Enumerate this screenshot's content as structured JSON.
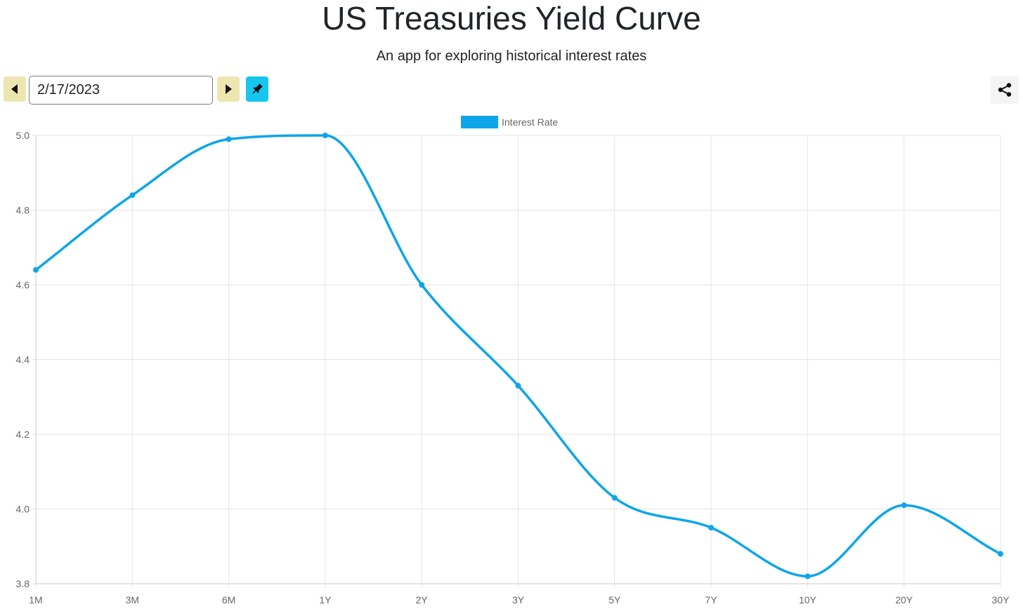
{
  "header": {
    "title": "US Treasuries Yield Curve",
    "subtitle": "An app for exploring historical interest rates"
  },
  "controls": {
    "date_value": "2/17/2023",
    "prev_icon": "triangle-left-icon",
    "next_icon": "triangle-right-icon",
    "pin_icon": "pushpin-icon",
    "share_icon": "share-icon"
  },
  "colors": {
    "line": "#0ea5e9",
    "prev_next_bg": "#eee6b0",
    "pin_bg": "#17c6ee",
    "grid": "#e5e5e5",
    "tick_text": "#666666"
  },
  "chart_data": {
    "type": "line",
    "categories": [
      "1M",
      "3M",
      "6M",
      "1Y",
      "2Y",
      "3Y",
      "5Y",
      "7Y",
      "10Y",
      "20Y",
      "30Y"
    ],
    "series": [
      {
        "name": "Interest Rate",
        "values": [
          4.64,
          4.84,
          4.99,
          5.0,
          4.6,
          4.33,
          4.03,
          3.95,
          3.82,
          4.01,
          3.88
        ]
      }
    ],
    "ylim": [
      3.8,
      5.0
    ],
    "yticks": [
      "5.0",
      "4.8",
      "4.6",
      "4.4",
      "4.2",
      "4.0",
      "3.8"
    ],
    "legend_position": "top-center",
    "grid": true,
    "smooth": true
  }
}
